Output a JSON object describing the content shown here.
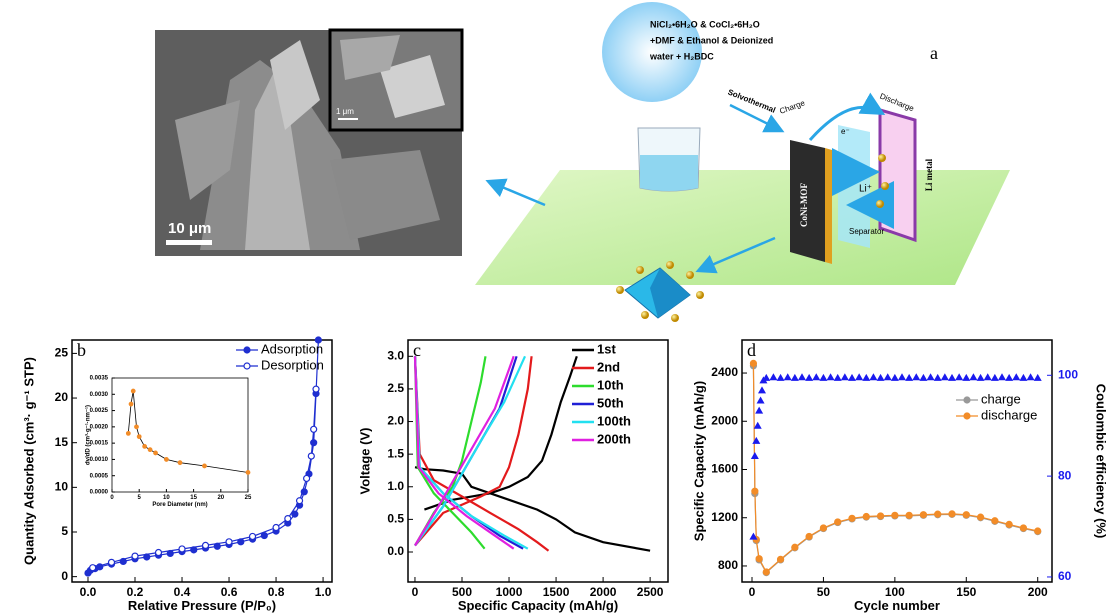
{
  "figure": {
    "sem": {
      "scale_bar": "10 μm",
      "inset_scale_bar": "1 μm"
    },
    "schematic": {
      "panel_label": "a",
      "reagents": [
        "NiCl₂•6H₂O & CoCl₂•6H₂O",
        "+DMF & Ethanol & Deionized",
        "water + H₂BDC"
      ],
      "solvothermal": "Solvothermal",
      "charge": "Charge",
      "discharge": "Discharge",
      "electron": "e⁻",
      "li_ion": "Li⁺",
      "separator": "Separator",
      "cathode": "CoNi-MOF",
      "anode": "Li metal"
    }
  },
  "chart_data": [
    {
      "type": "line",
      "panel_label": "b",
      "xlabel": "Relative Pressure (P/P₀)",
      "ylabel": "Quantity Adsorbed (cm³· g⁻¹ STP)",
      "xlim": [
        -0.068,
        1.038
      ],
      "ylim": [
        -0.6,
        26.5
      ],
      "xticks": [
        {
          "value": 0,
          "label": "0.0"
        },
        0.2,
        0.4,
        0.6,
        0.8,
        {
          "value": 1,
          "label": "1.0"
        }
      ],
      "yticks": [
        0,
        5,
        10,
        15,
        20,
        25
      ],
      "legend": "upper right",
      "series": [
        {
          "name": "Adsorption",
          "color": "#1f2fd0",
          "marker": "filled",
          "x": [
            0,
            0.01,
            0.03,
            0.05,
            0.1,
            0.15,
            0.2,
            0.25,
            0.3,
            0.35,
            0.4,
            0.45,
            0.5,
            0.55,
            0.6,
            0.65,
            0.7,
            0.75,
            0.8,
            0.85,
            0.88,
            0.9,
            0.92,
            0.94,
            0.96,
            0.97,
            0.98
          ],
          "values": [
            0.4,
            0.7,
            0.9,
            1.1,
            1.4,
            1.7,
            2,
            2.2,
            2.4,
            2.6,
            2.8,
            3,
            3.2,
            3.4,
            3.6,
            3.9,
            4.2,
            4.6,
            5.1,
            6,
            7,
            8,
            9.5,
            11.5,
            15,
            20.5,
            26.5
          ]
        },
        {
          "name": "Desorption",
          "color": "#1f2fd0",
          "marker": "open",
          "x": [
            0.02,
            0.1,
            0.2,
            0.3,
            0.4,
            0.5,
            0.6,
            0.7,
            0.8,
            0.85,
            0.9,
            0.93,
            0.95,
            0.96,
            0.97
          ],
          "values": [
            1,
            1.6,
            2.3,
            2.7,
            3.1,
            3.5,
            3.9,
            4.5,
            5.5,
            6.5,
            8.5,
            11,
            13.5,
            16.5,
            21
          ]
        }
      ]
    },
    {
      "type": "line",
      "xlabel": "Pore Diameter (nm)",
      "ylabel": "dv/dD (cm³·g⁻¹·nm⁻¹)",
      "xlim": [
        0,
        25
      ],
      "ylim": [
        0,
        0.0035
      ],
      "xticks": [
        0,
        5,
        10,
        15,
        20,
        25
      ],
      "yticks": [
        {
          "value": 0,
          "label": "0.0000"
        },
        0.0005,
        {
          "value": 0.001,
          "label": "0.0010"
        },
        0.0015,
        {
          "value": 0.002,
          "label": "0.0020"
        },
        0.0025,
        {
          "value": 0.003,
          "label": "0.0030"
        },
        0.0035
      ],
      "series": [
        {
          "color": "#000000",
          "marker": "filled",
          "markercolor": "#f28c28",
          "x": [
            3,
            3.5,
            3.9,
            4.5,
            5,
            6,
            7,
            8,
            10,
            12.5,
            17,
            25
          ],
          "values": [
            0.0018,
            0.0027,
            0.0031,
            0.002,
            0.0017,
            0.0014,
            0.0013,
            0.0012,
            0.001,
            0.0009,
            0.0008,
            0.0006
          ]
        }
      ]
    },
    {
      "type": "line",
      "panel_label": "c",
      "xlabel": "Specific Capacity (mAh/g)",
      "ylabel": "Voltage (V)",
      "xlim": [
        -74,
        2690
      ],
      "ylim": [
        -0.46,
        3.25
      ],
      "xticks": [
        0,
        500,
        1000,
        1500,
        2000,
        2500
      ],
      "yticks": [
        {
          "value": 0,
          "label": "0.0"
        },
        0.5,
        {
          "value": 1,
          "label": "1.0"
        },
        1.5,
        {
          "value": 2,
          "label": "2.0"
        },
        2.5,
        {
          "value": 3,
          "label": "3.0"
        }
      ],
      "legend": "upper right",
      "series": [
        {
          "name": "1st",
          "color": "#000000",
          "x": [
            0,
            100,
            300,
            500,
            600,
            800,
            1000,
            1300,
            1500,
            1700,
            2000,
            2500,
            null,
            100,
            400,
            800,
            1000,
            1200,
            1350,
            1450,
            1550,
            1650,
            1720
          ],
          "values": [
            1.3,
            1.27,
            1.25,
            1.2,
            1,
            0.9,
            0.8,
            0.65,
            0.5,
            0.3,
            0.15,
            0.02,
            null,
            0.65,
            0.8,
            0.9,
            1,
            1.15,
            1.4,
            1.8,
            2.3,
            2.7,
            3
          ]
        },
        {
          "name": "2nd",
          "color": "#e31a1c",
          "x": [
            0,
            50,
            200,
            500,
            800,
            1100,
            1300,
            1420,
            null,
            0,
            300,
            700,
            900,
            1000,
            1100,
            1200,
            1240
          ],
          "values": [
            3,
            1.5,
            1.1,
            0.85,
            0.6,
            0.35,
            0.15,
            0.02,
            null,
            0.1,
            0.6,
            0.85,
            1,
            1.3,
            1.8,
            2.5,
            3
          ]
        },
        {
          "name": "10th",
          "color": "#2ddc2d",
          "x": [
            0,
            30,
            200,
            400,
            600,
            740,
            null,
            0,
            200,
            400,
            500,
            600,
            700,
            750
          ],
          "values": [
            3,
            1.3,
            0.9,
            0.6,
            0.3,
            0.05,
            null,
            0.1,
            0.6,
            1,
            1.4,
            2,
            2.6,
            3
          ]
        },
        {
          "name": "50th",
          "color": "#1f1fd6",
          "x": [
            0,
            50,
            300,
            600,
            900,
            1150,
            null,
            0,
            300,
            500,
            700,
            900,
            1080
          ],
          "values": [
            3,
            1.3,
            0.9,
            0.55,
            0.25,
            0.05,
            null,
            0.1,
            0.7,
            1.2,
            1.7,
            2.2,
            3
          ]
        },
        {
          "name": "100th",
          "color": "#22e0f0",
          "x": [
            0,
            50,
            300,
            600,
            950,
            1200,
            null,
            0,
            300,
            500,
            700,
            950,
            1170
          ],
          "values": [
            3,
            1.3,
            0.9,
            0.55,
            0.25,
            0.05,
            null,
            0.1,
            0.7,
            1.2,
            1.7,
            2.3,
            3
          ]
        },
        {
          "name": "200th",
          "color": "#e020e0",
          "x": [
            0,
            40,
            250,
            550,
            850,
            1050,
            null,
            0,
            250,
            450,
            650,
            850,
            1050
          ],
          "values": [
            3,
            1.3,
            0.9,
            0.55,
            0.25,
            0.05,
            null,
            0.1,
            0.7,
            1.2,
            1.7,
            2.2,
            3
          ]
        }
      ]
    },
    {
      "type": "line",
      "panel_label": "d",
      "xlabel": "Cycle number",
      "ylabel": "Specific Capacity (mAh/g)",
      "y2label": "Coulombic efficiency (%)",
      "xlim": [
        -7,
        210
      ],
      "ylim": [
        667,
        2674
      ],
      "y2lim": [
        59,
        107
      ],
      "xticks": [
        0,
        50,
        100,
        150,
        200
      ],
      "yticks": [
        800,
        1200,
        1600,
        2000,
        2400
      ],
      "y2ticks": [
        60,
        80,
        100
      ],
      "legend": "center right",
      "series": [
        {
          "name": "charge",
          "color": "#999999",
          "marker": "filled",
          "x": [
            1,
            2,
            3,
            5,
            10,
            20,
            30,
            40,
            50,
            60,
            70,
            80,
            90,
            100,
            110,
            120,
            130,
            140,
            150,
            160,
            170,
            180,
            190,
            200
          ],
          "values": [
            2460,
            1400,
            1010,
            850,
            745,
            850,
            950,
            1040,
            1110,
            1160,
            1190,
            1205,
            1210,
            1215,
            1215,
            1220,
            1225,
            1228,
            1220,
            1200,
            1170,
            1140,
            1110,
            1085
          ]
        },
        {
          "name": "discharge",
          "color": "#f28c28",
          "marker": "filled",
          "x": [
            1,
            2,
            3,
            5,
            10,
            20,
            30,
            40,
            50,
            60,
            70,
            80,
            90,
            100,
            110,
            120,
            130,
            140,
            150,
            160,
            170,
            180,
            190,
            200
          ],
          "values": [
            2480,
            1420,
            1020,
            860,
            750,
            855,
            955,
            1045,
            1115,
            1165,
            1195,
            1210,
            1215,
            1220,
            1220,
            1225,
            1230,
            1232,
            1225,
            1205,
            1175,
            1145,
            1115,
            1090
          ]
        },
        {
          "color": "#1a1aee",
          "axis": "y2",
          "marker": "triangle",
          "line": false,
          "x": [
            1,
            2,
            3,
            4,
            5,
            6,
            7,
            8,
            10,
            15,
            20,
            25,
            30,
            35,
            40,
            45,
            50,
            55,
            60,
            65,
            70,
            75,
            80,
            85,
            90,
            95,
            100,
            105,
            110,
            115,
            120,
            125,
            130,
            135,
            140,
            145,
            150,
            155,
            160,
            165,
            170,
            175,
            180,
            185,
            190,
            195,
            200
          ],
          "values": [
            68,
            84,
            87,
            90,
            93,
            95,
            97,
            99,
            99.5,
            99.6,
            99.5,
            99.6,
            99.5,
            99.6,
            99.5,
            99.6,
            99.5,
            99.6,
            99.5,
            99.6,
            99.5,
            99.6,
            99.5,
            99.6,
            99.5,
            99.6,
            99.5,
            99.6,
            99.5,
            99.6,
            99.5,
            99.6,
            99.5,
            99.6,
            99.5,
            99.6,
            99.5,
            99.6,
            99.5,
            99.6,
            99.5,
            99.6,
            99.5,
            99.6,
            99.5,
            99.6,
            99.5
          ]
        }
      ]
    }
  ]
}
